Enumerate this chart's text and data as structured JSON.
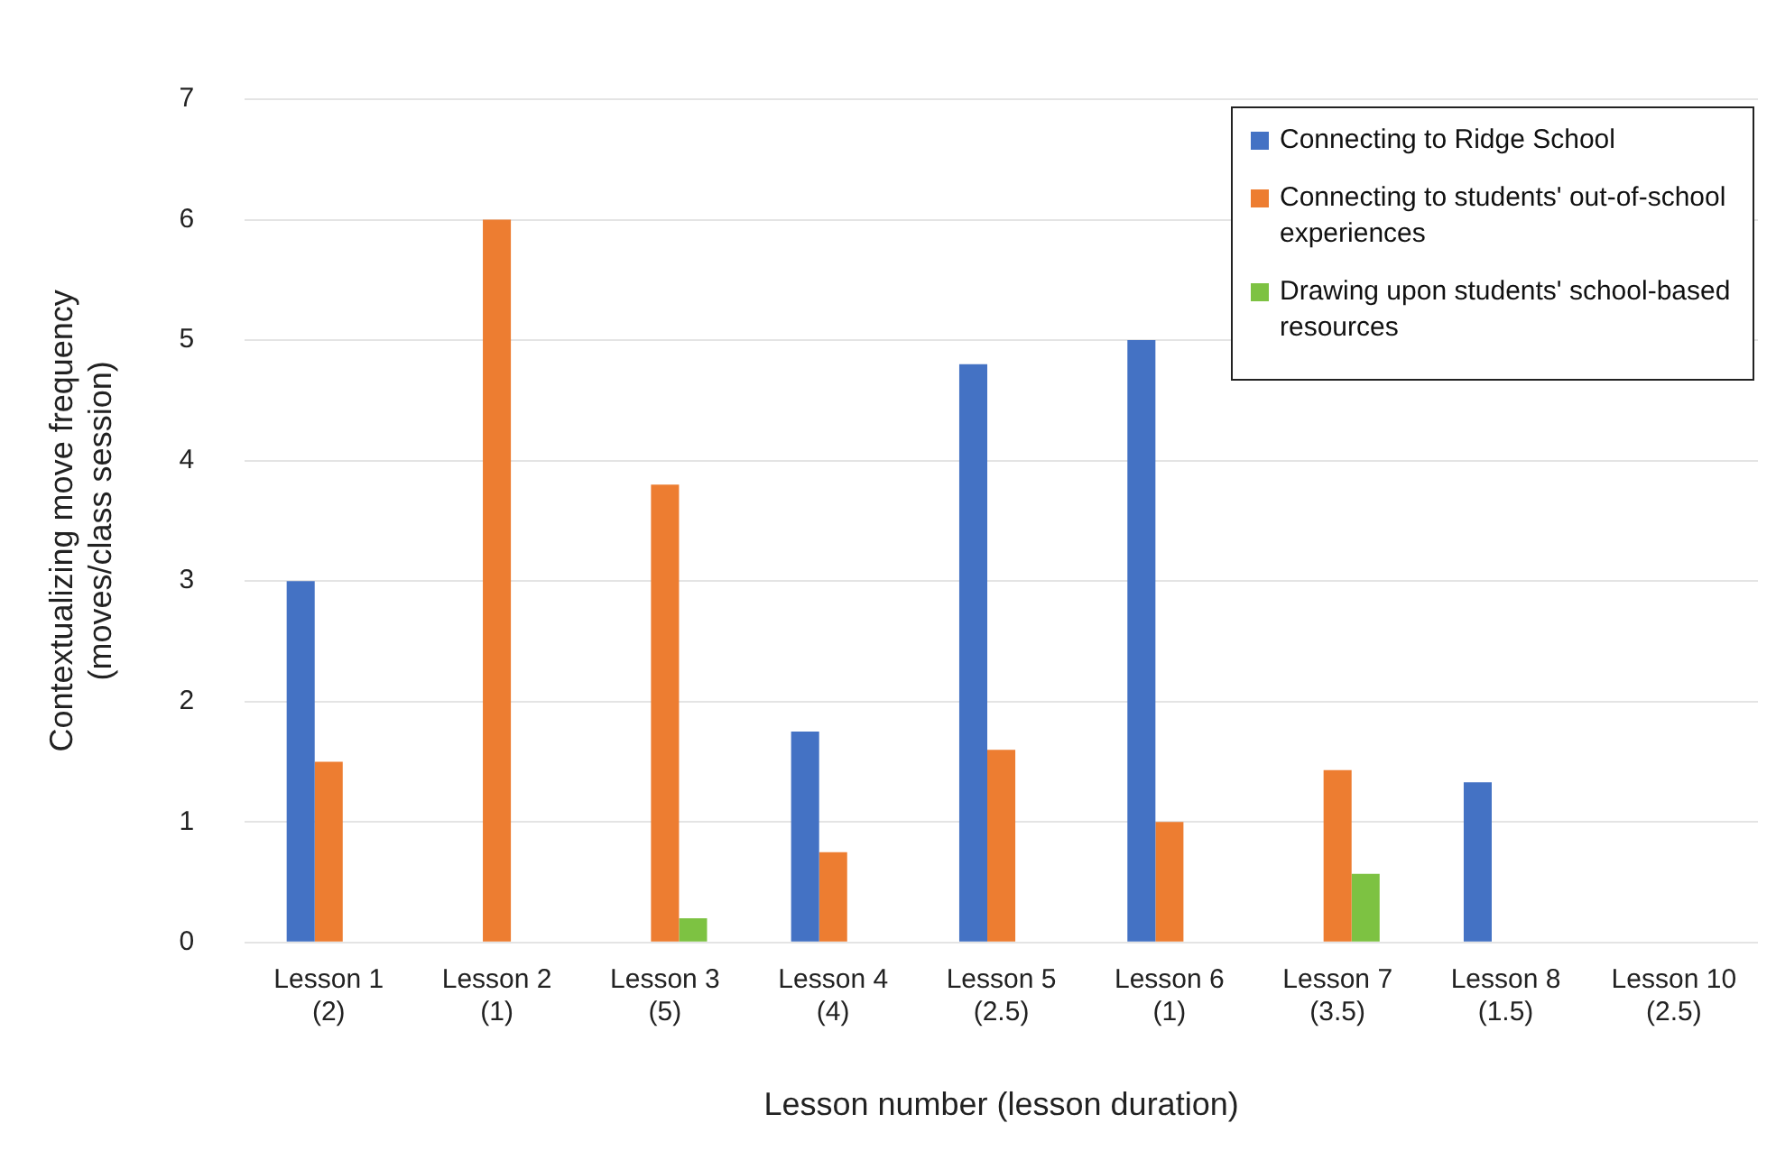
{
  "chart_data": {
    "type": "bar",
    "xlabel": "Lesson number (lesson duration)",
    "ylabel": "Contextualizing move frequency\n(moves/class session)",
    "categories": [
      "Lesson 1\n(2)",
      "Lesson 2\n(1)",
      "Lesson 3\n(5)",
      "Lesson 4\n(4)",
      "Lesson 5\n(2.5)",
      "Lesson 6\n(1)",
      "Lesson 7\n(3.5)",
      "Lesson 8\n(1.5)",
      "Lesson 10\n(2.5)"
    ],
    "series": [
      {
        "name": "Connecting to Ridge School",
        "color": "#4472c4",
        "values": [
          3,
          0,
          0,
          1.75,
          4.8,
          5,
          0,
          1.33,
          0
        ]
      },
      {
        "name": "Connecting to students' out-of-school experiences",
        "color": "#ed7d31",
        "values": [
          1.5,
          6,
          3.8,
          0.75,
          1.6,
          1,
          1.43,
          0,
          0
        ]
      },
      {
        "name": "Drawing upon students' school-based resources",
        "color": "#7dc242",
        "values": [
          0,
          0,
          0.2,
          0,
          0,
          0,
          0.57,
          0,
          0
        ]
      }
    ],
    "ylim": [
      0,
      7
    ],
    "yticks": [
      0,
      1,
      2,
      3,
      4,
      5,
      6,
      7
    ],
    "grid": "y",
    "legend": "top right"
  }
}
